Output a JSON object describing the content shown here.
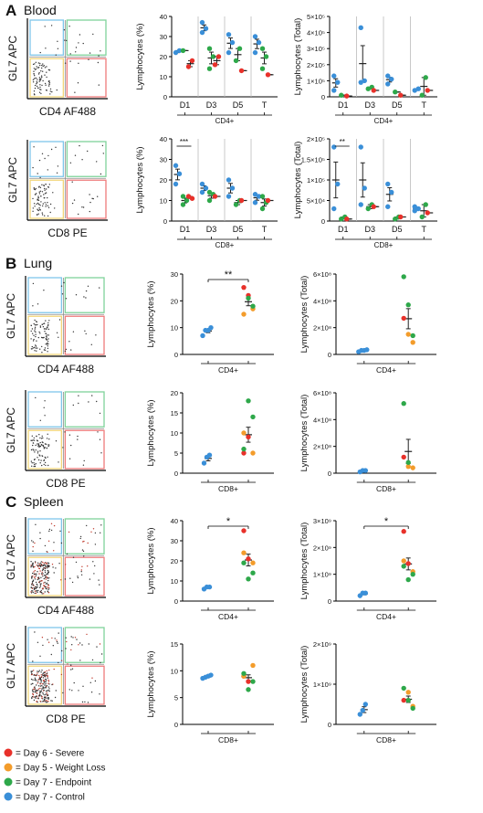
{
  "figure": {
    "legend": [
      {
        "label": "= Day 6 - Severe",
        "color": "#e8312a"
      },
      {
        "label": "= Day 5 - Weight Loss",
        "color": "#f39c2b"
      },
      {
        "label": "= Day 7 - Endpoint",
        "color": "#2ea84a"
      },
      {
        "label": "= Day 7 - Control",
        "color": "#3a8fd8"
      }
    ]
  },
  "chart_data": [
    {
      "type": "scatter",
      "panel": "A",
      "tissue": "Blood",
      "kind": "flow",
      "xlabel": "CD4 AF488",
      "ylabel": "GL7 APC"
    },
    {
      "type": "scatter",
      "panel": "A",
      "kind": "percent",
      "ylabel": "Lymphocytes (%)",
      "ylim": [
        0,
        40
      ],
      "yticks": [
        "0",
        "10",
        "20",
        "30",
        "40"
      ],
      "categories": [
        "D1",
        "D3",
        "D5",
        "T"
      ],
      "group_label": "CD4+",
      "points": {
        "D1": {
          "control": [
            22,
            23
          ],
          "endpoint": [
            23
          ],
          "severe": [
            15,
            18
          ]
        },
        "D3": {
          "control": [
            32,
            34,
            37
          ],
          "endpoint": [
            14,
            20,
            24
          ],
          "severe": [
            16,
            20
          ]
        },
        "D5": {
          "control": [
            22,
            27,
            31
          ],
          "endpoint": [
            18,
            24
          ],
          "severe": [
            13
          ]
        },
        "T": {
          "control": [
            22,
            27,
            30
          ],
          "endpoint": [
            14,
            20,
            24
          ],
          "severe": [
            11
          ]
        }
      }
    },
    {
      "type": "scatter",
      "panel": "A",
      "kind": "total",
      "ylabel": "Lymphocytes (Total)",
      "ylim": [
        0,
        5
      ],
      "yticks": [
        "0",
        "1×10⁵",
        "2×10⁵",
        "3×10⁵",
        "4×10⁵",
        "5×10⁵"
      ],
      "categories": [
        "D1",
        "D3",
        "D5",
        "T"
      ],
      "group_label": "CD4+",
      "points": {
        "D1": {
          "control": [
            0.4,
            0.9,
            1.3
          ],
          "endpoint": [
            0.1
          ],
          "severe": [
            0.05
          ]
        },
        "D3": {
          "control": [
            0.9,
            1.0,
            4.3
          ],
          "endpoint": [
            0.5,
            0.6
          ],
          "severe": [
            0.4
          ]
        },
        "D5": {
          "control": [
            0.8,
            1.1,
            1.3
          ],
          "endpoint": [
            0.3
          ],
          "severe": [
            0.1
          ]
        },
        "T": {
          "control": [
            0.4,
            0.5
          ],
          "endpoint": [
            0.1,
            1.2
          ],
          "severe": [
            0.4
          ]
        }
      }
    },
    {
      "type": "scatter",
      "panel": "A",
      "kind": "flow",
      "xlabel": "CD8 PE",
      "ylabel": "GL7 APC"
    },
    {
      "type": "scatter",
      "panel": "A",
      "kind": "percent",
      "ylabel": "Lymphocytes (%)",
      "ylim": [
        0,
        40
      ],
      "yticks": [
        "0",
        "10",
        "20",
        "30",
        "40"
      ],
      "categories": [
        "D1",
        "D3",
        "D5",
        "T"
      ],
      "group_label": "CD8+",
      "annotation": {
        "category": "D1",
        "text": "***"
      },
      "points": {
        "D1": {
          "control": [
            18,
            23,
            27
          ],
          "endpoint": [
            8,
            10,
            12
          ],
          "severe": [
            12,
            11
          ]
        },
        "D3": {
          "control": [
            14,
            16,
            18
          ],
          "endpoint": [
            10,
            13,
            14
          ],
          "severe": [
            12
          ]
        },
        "D5": {
          "control": [
            12,
            16,
            20
          ],
          "endpoint": [
            8,
            10
          ],
          "severe": [
            10
          ]
        },
        "T": {
          "control": [
            9,
            12,
            13
          ],
          "endpoint": [
            6,
            9,
            12
          ],
          "severe": [
            10
          ]
        }
      }
    },
    {
      "type": "scatter",
      "panel": "A",
      "kind": "total",
      "ylabel": "Lymphocytes (Total)",
      "ylim": [
        0,
        2
      ],
      "yticks": [
        "0",
        "5×10⁴",
        "1×10⁵",
        "1.5×10⁵",
        "2×10⁵"
      ],
      "categories": [
        "D1",
        "D3",
        "D5",
        "T"
      ],
      "group_label": "CD8+",
      "annotation": {
        "category": "D1",
        "text": "**"
      },
      "points": {
        "D1": {
          "control": [
            0.3,
            0.9,
            1.8
          ],
          "endpoint": [
            0.05,
            0.1
          ],
          "severe": [
            0.05
          ]
        },
        "D3": {
          "control": [
            0.4,
            0.8,
            1.8
          ],
          "endpoint": [
            0.3,
            0.4
          ],
          "severe": [
            0.35
          ]
        },
        "D5": {
          "control": [
            0.35,
            0.7,
            0.9
          ],
          "endpoint": [
            0.05,
            0.1
          ],
          "severe": [
            0.1
          ]
        },
        "T": {
          "control": [
            0.25,
            0.3,
            0.35
          ],
          "endpoint": [
            0.1,
            0.4
          ],
          "severe": [
            0.2
          ]
        }
      }
    },
    {
      "type": "scatter",
      "panel": "B",
      "tissue": "Lung",
      "kind": "flow",
      "xlabel": "CD4 AF488",
      "ylabel": "GL7 APC"
    },
    {
      "type": "scatter",
      "panel": "B",
      "kind": "percent",
      "ylabel": "Lymphocytes (%)",
      "ylim": [
        0,
        30
      ],
      "yticks": [
        "0",
        "10",
        "20",
        "30"
      ],
      "categories": [
        "CD4+"
      ],
      "annotation": {
        "text": "**"
      },
      "points": {
        "control": [
          7,
          9,
          9,
          10
        ],
        "infected": {
          "severe": [
            25,
            22
          ],
          "weight_loss": [
            17,
            15
          ],
          "endpoint": [
            21,
            18
          ]
        }
      }
    },
    {
      "type": "scatter",
      "panel": "B",
      "kind": "total",
      "ylabel": "Lymphocytes (Total)",
      "ylim": [
        0,
        6
      ],
      "yticks": [
        "0",
        "2×10⁸",
        "4×10⁸",
        "6×10⁸"
      ],
      "categories": [
        "CD4+"
      ],
      "points": {
        "control": [
          0.2,
          0.3,
          0.3,
          0.35
        ],
        "infected": {
          "severe": [
            2.7
          ],
          "weight_loss": [
            1.5,
            0.9
          ],
          "endpoint": [
            5.8,
            3.7,
            1.4
          ]
        }
      }
    },
    {
      "type": "scatter",
      "panel": "B",
      "kind": "flow",
      "xlabel": "CD8 PE",
      "ylabel": "GL7 APC"
    },
    {
      "type": "scatter",
      "panel": "B",
      "kind": "percent",
      "ylabel": "Lymphocytes (%)",
      "ylim": [
        0,
        20
      ],
      "yticks": [
        "0",
        "5",
        "10",
        "15",
        "20"
      ],
      "categories": [
        "CD8+"
      ],
      "points": {
        "control": [
          2.5,
          4,
          4.5
        ],
        "infected": {
          "severe": [
            5,
            9
          ],
          "weight_loss": [
            5,
            10
          ],
          "endpoint": [
            18,
            14,
            6
          ]
        }
      }
    },
    {
      "type": "scatter",
      "panel": "B",
      "kind": "total",
      "ylabel": "Lymphocytes (Total)",
      "ylim": [
        0,
        6
      ],
      "yticks": [
        "0",
        "2×10⁸",
        "4×10⁸",
        "6×10⁸"
      ],
      "categories": [
        "CD8+"
      ],
      "points": {
        "control": [
          0.1,
          0.2,
          0.2
        ],
        "infected": {
          "severe": [
            1.2
          ],
          "weight_loss": [
            0.5,
            0.4
          ],
          "endpoint": [
            5.2,
            0.8
          ]
        }
      }
    },
    {
      "type": "scatter",
      "panel": "C",
      "tissue": "Spleen",
      "kind": "flow",
      "xlabel": "CD4 AF488",
      "ylabel": "GL7 APC"
    },
    {
      "type": "scatter",
      "panel": "C",
      "kind": "percent",
      "ylabel": "Lymphocytes (%)",
      "ylim": [
        0,
        40
      ],
      "yticks": [
        "0",
        "10",
        "20",
        "30",
        "40"
      ],
      "categories": [
        "CD4+"
      ],
      "annotation": {
        "text": "*"
      },
      "points": {
        "control": [
          6,
          7,
          7
        ],
        "infected": {
          "severe": [
            35,
            21
          ],
          "weight_loss": [
            19,
            24
          ],
          "endpoint": [
            11,
            14,
            19
          ]
        }
      }
    },
    {
      "type": "scatter",
      "panel": "C",
      "kind": "total",
      "ylabel": "Lymphocytes (Total)",
      "ylim": [
        0,
        3
      ],
      "yticks": [
        "0",
        "1×10⁹",
        "2×10⁹",
        "3×10⁹"
      ],
      "categories": [
        "CD4+"
      ],
      "annotation": {
        "text": "*"
      },
      "points": {
        "control": [
          0.2,
          0.3,
          0.3
        ],
        "infected": {
          "severe": [
            2.6,
            1.4
          ],
          "weight_loss": [
            1.1,
            1.5
          ],
          "endpoint": [
            0.8,
            1.0,
            1.3
          ]
        }
      }
    },
    {
      "type": "scatter",
      "panel": "C",
      "kind": "flow",
      "xlabel": "CD8 PE",
      "ylabel": "GL7 APC"
    },
    {
      "type": "scatter",
      "panel": "C",
      "kind": "percent",
      "ylabel": "Lymphocytes (%)",
      "ylim": [
        0,
        15
      ],
      "yticks": [
        "0",
        "5",
        "10",
        "15"
      ],
      "categories": [
        "CD8+"
      ],
      "points": {
        "control": [
          8.6,
          8.8,
          9,
          9.2
        ],
        "infected": {
          "severe": [
            9,
            8
          ],
          "weight_loss": [
            11,
            9
          ],
          "endpoint": [
            6.5,
            8,
            9.5
          ]
        }
      }
    },
    {
      "type": "scatter",
      "panel": "C",
      "kind": "total",
      "ylabel": "Lymphocytes (Total)",
      "ylim": [
        0,
        2
      ],
      "yticks": [
        "0",
        "1×10⁹",
        "2×10⁹"
      ],
      "categories": [
        "CD8+"
      ],
      "points": {
        "control": [
          0.25,
          0.35,
          0.5
        ],
        "infected": {
          "severe": [
            0.6
          ],
          "weight_loss": [
            0.8,
            0.45
          ],
          "endpoint": [
            0.9,
            0.6,
            0.4
          ]
        }
      }
    }
  ]
}
